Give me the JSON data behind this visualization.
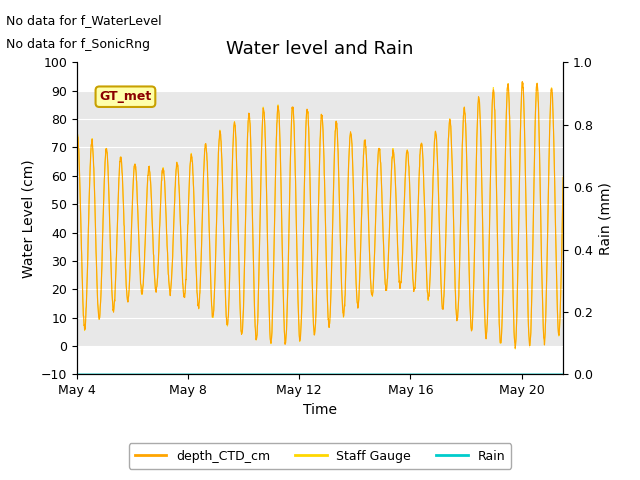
{
  "title": "Water level and Rain",
  "xlabel": "Time",
  "ylabel_left": "Water Level (cm)",
  "ylabel_right": "Rain (mm)",
  "annotation_line1": "No data for f_WaterLevel",
  "annotation_line2": "No data for f_SonicRng",
  "gt_met_label": "GT_met",
  "ylim_left": [
    -10,
    100
  ],
  "ylim_right": [
    0.0,
    1.0
  ],
  "yticks_left": [
    -10,
    0,
    10,
    20,
    30,
    40,
    50,
    60,
    70,
    80,
    90,
    100
  ],
  "yticks_right": [
    0.0,
    0.2,
    0.4,
    0.6,
    0.8,
    1.0
  ],
  "xtick_labels": [
    "May 4",
    "May 8",
    "May 12",
    "May 16",
    "May 20"
  ],
  "xtick_positions": [
    0,
    4,
    8,
    12,
    16
  ],
  "xlim": [
    0,
    17.5
  ],
  "color_ctd": "#FFA500",
  "color_staff": "#FFD700",
  "color_rain_line": "#00CCCC",
  "bg_gray": "#E8E8E8",
  "bg_gray_ymin": 0,
  "bg_gray_ymax": 90,
  "legend_labels": [
    "depth_CTD_cm",
    "Staff Gauge",
    "Rain"
  ],
  "rain_y": -10,
  "title_fontsize": 13,
  "axis_label_fontsize": 10,
  "tick_fontsize": 9,
  "annotation_fontsize": 9,
  "gt_met_fontsize": 9
}
